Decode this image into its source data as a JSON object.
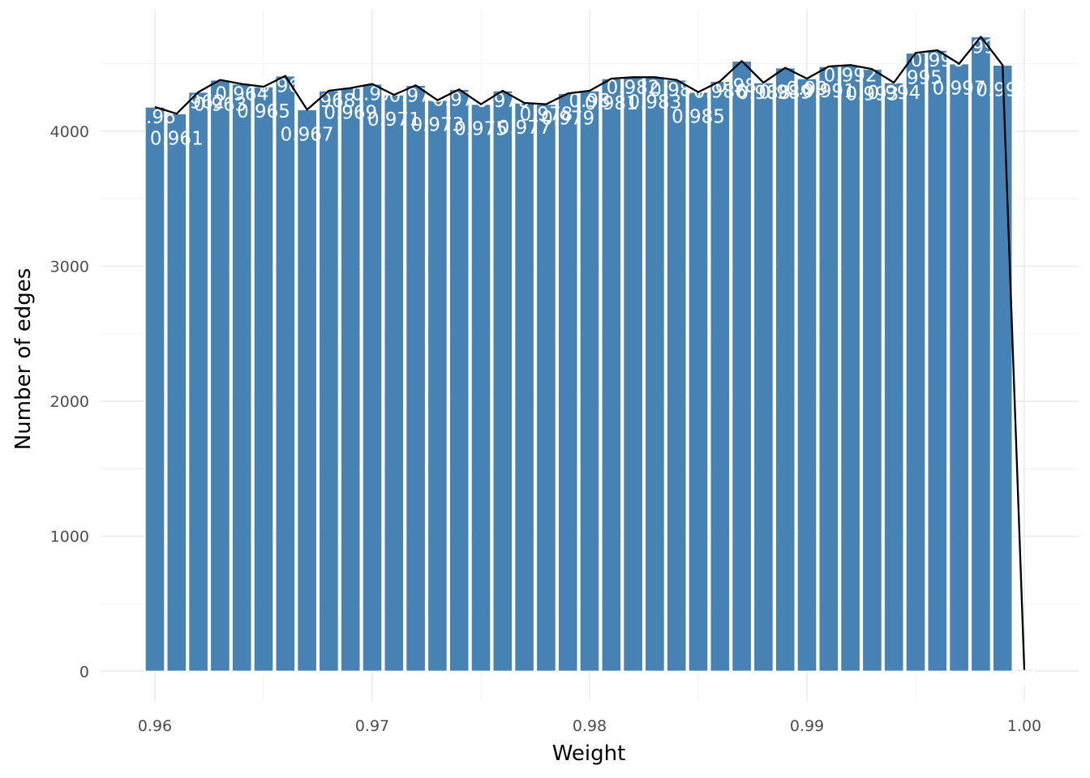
{
  "chart_data": {
    "type": "bar",
    "xlabel": "Weight",
    "ylabel": "Number of edges",
    "xlim": [
      0.9575,
      1.0025
    ],
    "ylim": [
      -220,
      4900
    ],
    "x_ticks": [
      "0.96",
      "0.97",
      "0.98",
      "0.99",
      "1.00"
    ],
    "x_tick_values": [
      0.96,
      0.97,
      0.98,
      0.99,
      1.0
    ],
    "y_ticks": [
      "0",
      "1000",
      "2000",
      "3000",
      "4000"
    ],
    "y_tick_values": [
      0,
      1000,
      2000,
      3000,
      4000
    ],
    "grid": true,
    "bar_color": "#4682b4",
    "line_color": "#000000",
    "categories": [
      "0.96",
      "0.961",
      "0.962",
      "0.963",
      "0.964",
      "0.965",
      "0.966",
      "0.967",
      "0.968",
      "0.969",
      "0.97",
      "0.971",
      "0.972",
      "0.973",
      "0.974",
      "0.975",
      "0.976",
      "0.977",
      "0.978",
      "0.979",
      "0.98",
      "0.981",
      "0.982",
      "0.983",
      "0.984",
      "0.985",
      "0.986",
      "0.987",
      "0.988",
      "0.989",
      "0.99",
      "0.991",
      "0.992",
      "0.993",
      "0.994",
      "0.995",
      "0.996",
      "0.997",
      "0.998",
      "0.999",
      "1"
    ],
    "x": [
      0.96,
      0.961,
      0.962,
      0.963,
      0.964,
      0.965,
      0.966,
      0.967,
      0.968,
      0.969,
      0.97,
      0.971,
      0.972,
      0.973,
      0.974,
      0.975,
      0.976,
      0.977,
      0.978,
      0.979,
      0.98,
      0.981,
      0.982,
      0.983,
      0.984,
      0.985,
      0.986,
      0.987,
      0.988,
      0.989,
      0.99,
      0.991,
      0.992,
      0.993,
      0.994,
      0.995,
      0.996,
      0.997,
      0.998,
      0.999,
      1.0
    ],
    "values": [
      4180,
      4130,
      4290,
      4380,
      4350,
      4330,
      4410,
      4160,
      4300,
      4320,
      4350,
      4270,
      4340,
      4230,
      4310,
      4200,
      4300,
      4210,
      4200,
      4280,
      4300,
      4390,
      4400,
      4400,
      4380,
      4290,
      4370,
      4520,
      4360,
      4470,
      4390,
      4480,
      4490,
      4460,
      4360,
      4580,
      4600,
      4500,
      4700,
      4490,
      10
    ]
  }
}
